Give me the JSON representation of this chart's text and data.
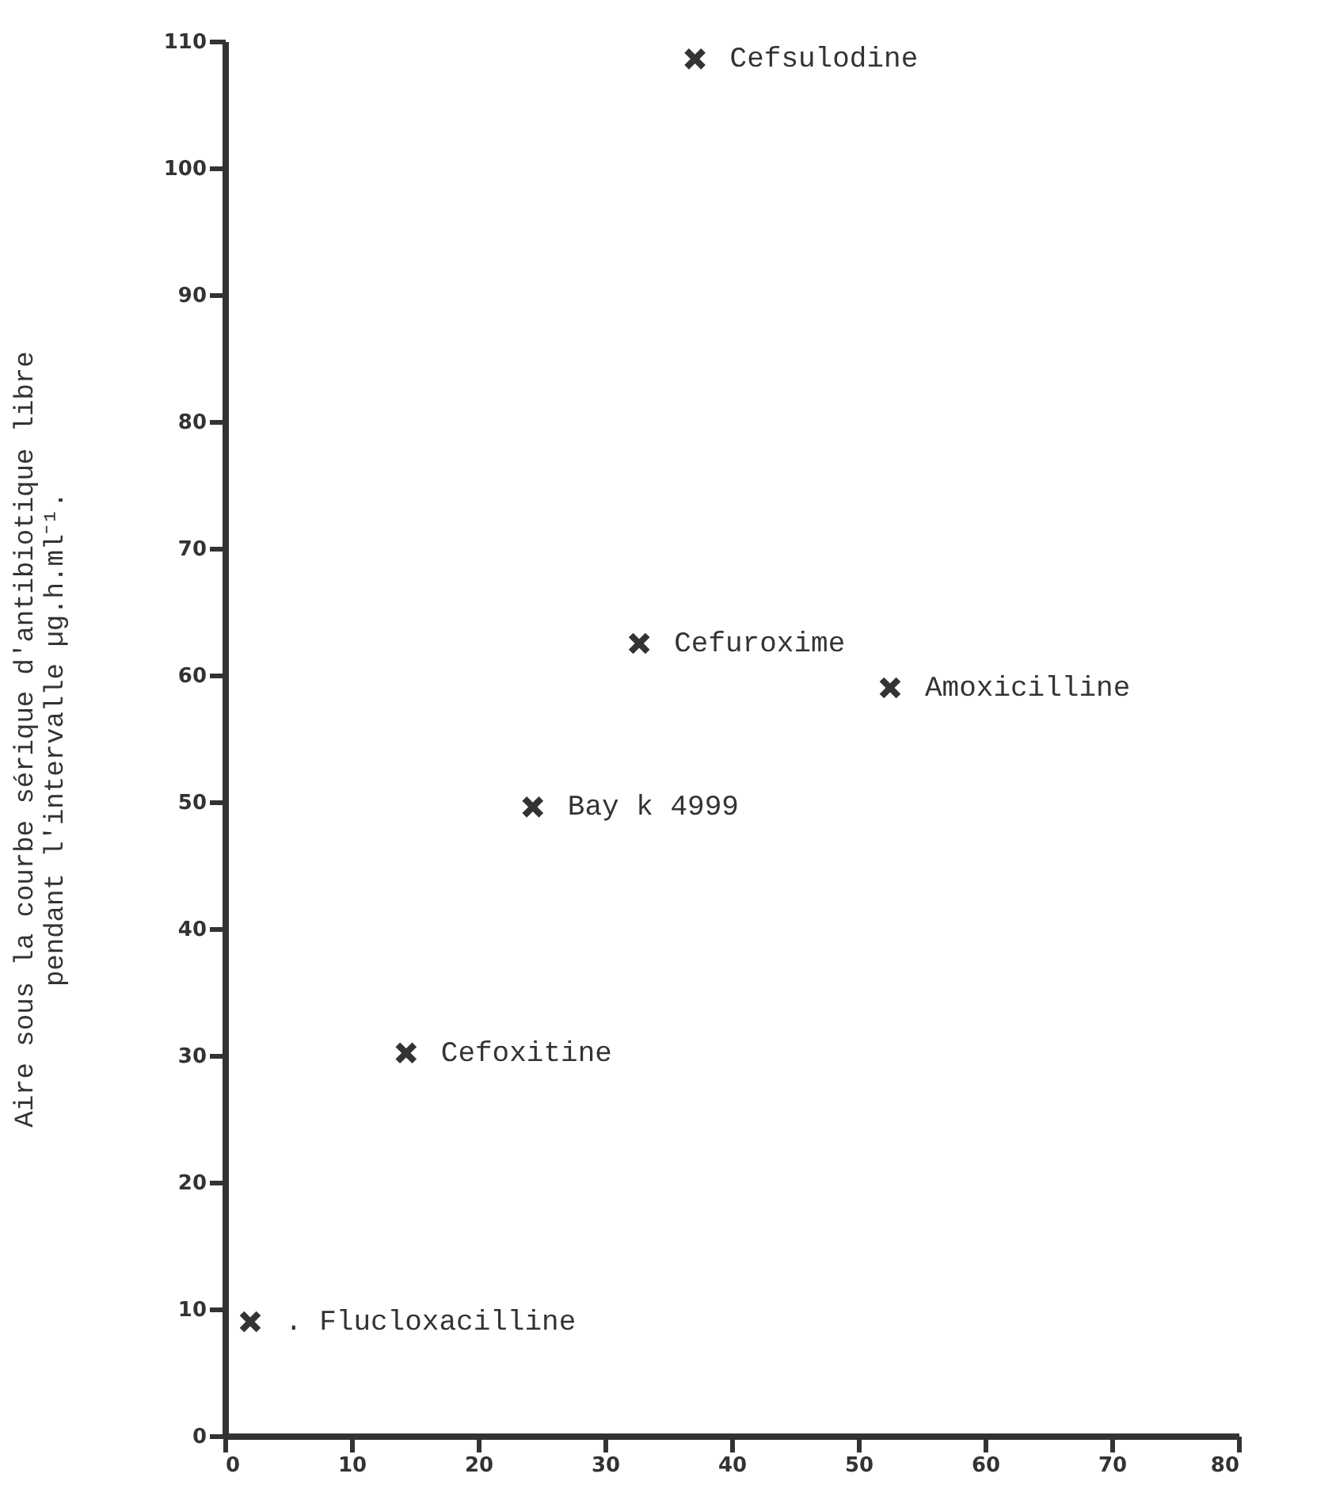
{
  "chart_data": {
    "type": "scatter",
    "ylabel": [
      "Aire sous la courbe sérique d'antibiotique libre",
      "pendant l'intervalle µg.h.ml⁻¹."
    ],
    "series": [
      {
        "color": "#333333",
        "x": [
          37.1,
          32.7,
          52.5,
          24.3,
          14.3,
          2.0
        ],
        "values": [
          108.6,
          62.5,
          59,
          49.6,
          30.2,
          9.0
        ]
      }
    ],
    "annotations": [
      {
        "text": "Cefsulodine",
        "x": 37.1,
        "y": 108.6
      },
      {
        "text": "Cefuroxime",
        "x": 32.7,
        "y": 62.5
      },
      {
        "text": "Amoxicilline",
        "x": 52.5,
        "y": 59
      },
      {
        "text": "Bay k 4999",
        "x": 24.3,
        "y": 49.6
      },
      {
        "text": "Cefoxitine",
        "x": 14.3,
        "y": 30.2
      },
      {
        "text": ". Flucloxacilline",
        "x": 2.0,
        "y": 9.0
      }
    ],
    "xlim": [
      0,
      80
    ],
    "xticks": [
      0,
      10,
      20,
      30,
      40,
      50,
      60,
      70,
      80
    ],
    "ylim": [
      0,
      110
    ],
    "yticks": [
      0,
      10,
      20,
      30,
      40,
      50,
      60,
      70,
      80,
      90,
      100,
      110
    ],
    "marker": "cross",
    "grid": false
  }
}
